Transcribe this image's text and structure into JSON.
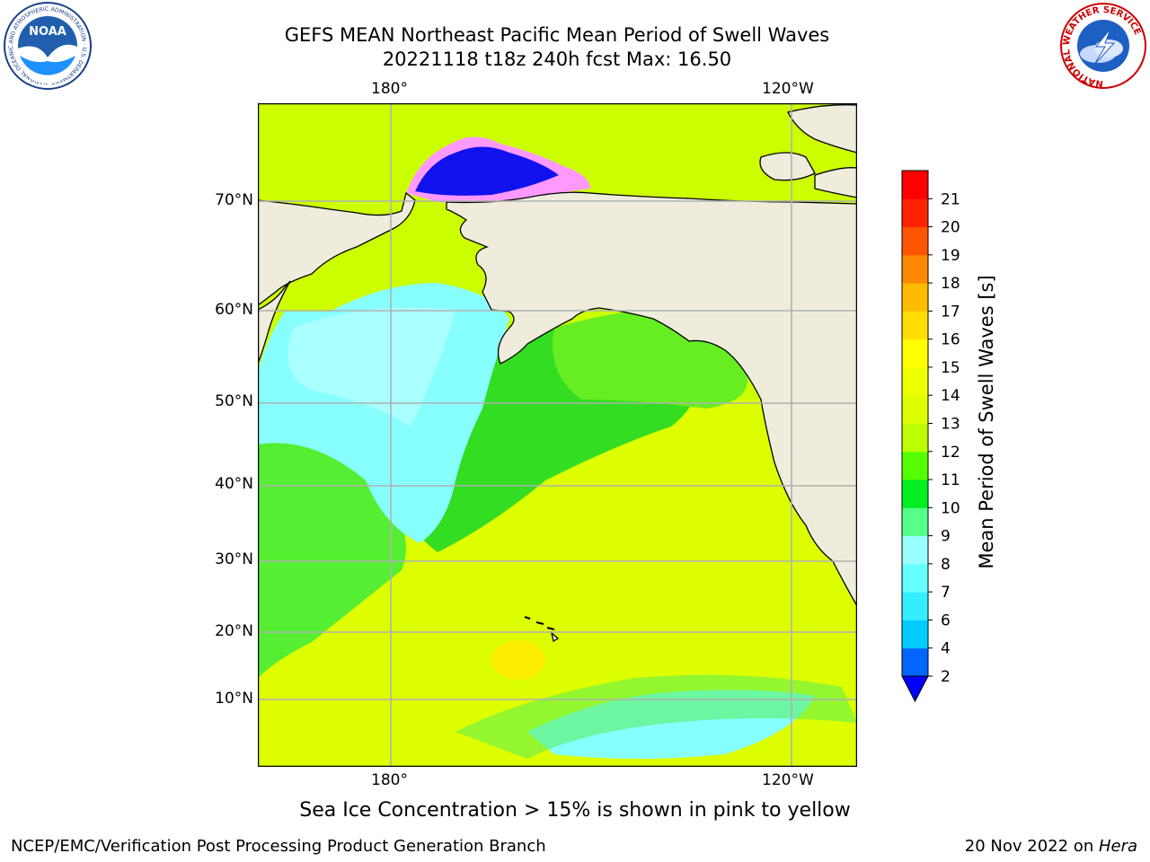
{
  "header": {
    "title_line1": "GEFS MEAN Northeast Pacific Mean Period of Swell Waves",
    "title_line2": "20221118 t18z 240h fcst   Max: 16.50"
  },
  "logos": {
    "noaa_text": "NOAA",
    "noaa_ring_text": "NATIONAL OCEANIC AND ATMOSPHERIC ADMINISTRATION · U.S. DEPARTMENT OF COMMERCE",
    "nws_ring_text": "NATIONAL WEATHER SERVICE"
  },
  "map": {
    "top_lon_labels": [
      "180°",
      "120°W"
    ],
    "bottom_lon_labels": [
      "180°",
      "120°W"
    ],
    "lat_labels": [
      "70°N",
      "60°N",
      "50°N",
      "40°N",
      "30°N",
      "20°N",
      "10°N"
    ],
    "land_color": "#efecdc",
    "gridline_color": "#b0b0b0"
  },
  "colorbar": {
    "title": "Mean Period of Swell Waves [s]",
    "ticks": [
      "2",
      "4",
      "6",
      "7",
      "8",
      "9",
      "10",
      "11",
      "12",
      "13",
      "14",
      "15",
      "16",
      "17",
      "18",
      "19",
      "20",
      "21"
    ],
    "colors": [
      "#0066ff",
      "#00ccff",
      "#33eeff",
      "#66ffff",
      "#99ffff",
      "#55ff88",
      "#00ee22",
      "#55ff00",
      "#bbff00",
      "#ddff00",
      "#eeff00",
      "#ffff00",
      "#ffdd00",
      "#ffbb00",
      "#ff8800",
      "#ff5500",
      "#ff2200",
      "#ff0000"
    ],
    "under_color": "#0000ff"
  },
  "footer": {
    "note": "Sea Ice Concentration > 15% is shown in pink to yellow",
    "left": "NCEP/EMC/Verification Post Processing Product Generation Branch",
    "right_prefix": "20 Nov 2022 on ",
    "right_italic": "Hera"
  }
}
